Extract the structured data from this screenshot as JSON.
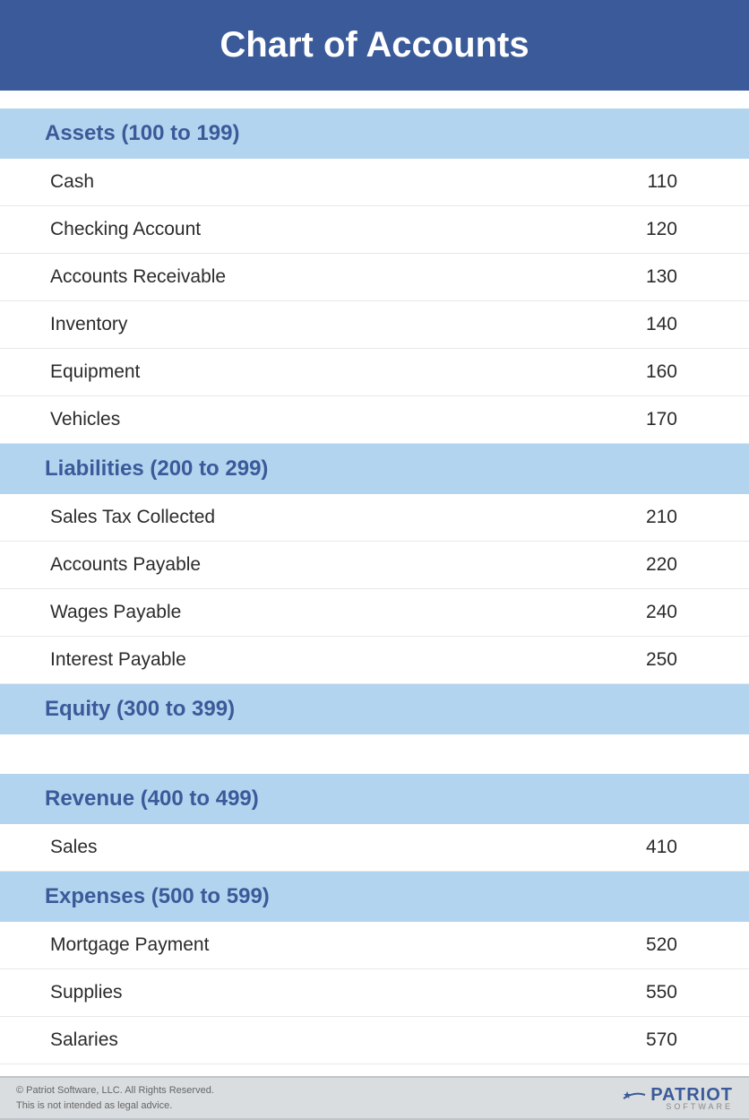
{
  "title": "Chart of Accounts",
  "colors": {
    "header_bg": "#3a5a99",
    "header_text": "#ffffff",
    "section_bg": "#b3d4ef",
    "section_text": "#3a5a99",
    "row_text": "#2b2b2b",
    "row_border": "#e8e8e8",
    "footer_bg": "#d9dde0",
    "footer_text": "#666666",
    "logo_color": "#3a5a99"
  },
  "typography": {
    "title_fontsize": 40,
    "section_fontsize": 24,
    "row_fontsize": 21,
    "footer_fontsize": 11
  },
  "sections": [
    {
      "title": "Assets (100 to 199)",
      "rows": [
        {
          "label": "Cash",
          "code": "110"
        },
        {
          "label": "Checking Account",
          "code": "120"
        },
        {
          "label": "Accounts Receivable",
          "code": "130"
        },
        {
          "label": "Inventory",
          "code": "140"
        },
        {
          "label": "Equipment",
          "code": "160"
        },
        {
          "label": "Vehicles",
          "code": "170"
        }
      ]
    },
    {
      "title": "Liabilities (200 to 299)",
      "rows": [
        {
          "label": "Sales Tax Collected",
          "code": "210"
        },
        {
          "label": "Accounts Payable",
          "code": "220"
        },
        {
          "label": "Wages Payable",
          "code": "240"
        },
        {
          "label": "Interest Payable",
          "code": "250"
        }
      ]
    },
    {
      "title": "Equity (300 to 399)",
      "rows": [],
      "spacer_after": true
    },
    {
      "title": "Revenue (400 to 499)",
      "rows": [
        {
          "label": "Sales",
          "code": "410"
        }
      ]
    },
    {
      "title": "Expenses (500 to 599)",
      "rows": [
        {
          "label": "Mortgage Payment",
          "code": "520"
        },
        {
          "label": "Supplies",
          "code": "550"
        },
        {
          "label": "Salaries",
          "code": "570"
        }
      ]
    }
  ],
  "footer": {
    "copyright": "© Patriot Software, LLC. All Rights Reserved.",
    "disclaimer": "This is not intended as legal advice.",
    "logo_main": "PATRIOT",
    "logo_sub": "SOFTWARE"
  }
}
